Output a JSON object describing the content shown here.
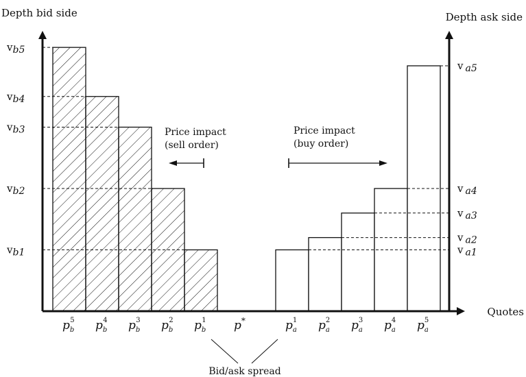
{
  "axes": {
    "y_left_title": "Depth bid side",
    "y_right_title": "Depth ask side",
    "x_title": "Quotes"
  },
  "bid_levels": [
    {
      "price_base": "p",
      "price_sub": "b",
      "price_sup": "1",
      "volume_base": "v",
      "volume_sub": "b1",
      "depth": 1
    },
    {
      "price_base": "p",
      "price_sub": "b",
      "price_sup": "2",
      "volume_base": "v",
      "volume_sub": "b2",
      "depth": 2
    },
    {
      "price_base": "p",
      "price_sub": "b",
      "price_sup": "3",
      "volume_base": "v",
      "volume_sub": "b3",
      "depth": 3
    },
    {
      "price_base": "p",
      "price_sub": "b",
      "price_sup": "4",
      "volume_base": "v",
      "volume_sub": "b4",
      "depth": 3.5
    },
    {
      "price_base": "p",
      "price_sub": "b",
      "price_sup": "5",
      "volume_base": "v",
      "volume_sub": "b5",
      "depth": 4.3
    }
  ],
  "ask_levels": [
    {
      "price_base": "p",
      "price_sub": "a",
      "price_sup": "1",
      "volume_base": "v",
      "volume_sub": "a1",
      "depth": 1
    },
    {
      "price_base": "p",
      "price_sub": "a",
      "price_sup": "2",
      "volume_base": "v",
      "volume_sub": "a2",
      "depth": 1.2
    },
    {
      "price_base": "p",
      "price_sub": "a",
      "price_sup": "3",
      "volume_base": "v",
      "volume_sub": "a3",
      "depth": 1.6
    },
    {
      "price_base": "p",
      "price_sub": "a",
      "price_sup": "4",
      "volume_base": "v",
      "volume_sub": "a4",
      "depth": 2
    },
    {
      "price_base": "p",
      "price_sub": "a",
      "price_sup": "5",
      "volume_base": "v",
      "volume_sub": "a5",
      "depth": 4
    }
  ],
  "mid_price": {
    "base": "p",
    "sup": "*"
  },
  "annotations": {
    "sell_impact_line1": "Price impact",
    "sell_impact_line2": "(sell order)",
    "buy_impact_line1": "Price impact",
    "buy_impact_line2": "(buy order)",
    "spread": "Bid/ask spread"
  }
}
